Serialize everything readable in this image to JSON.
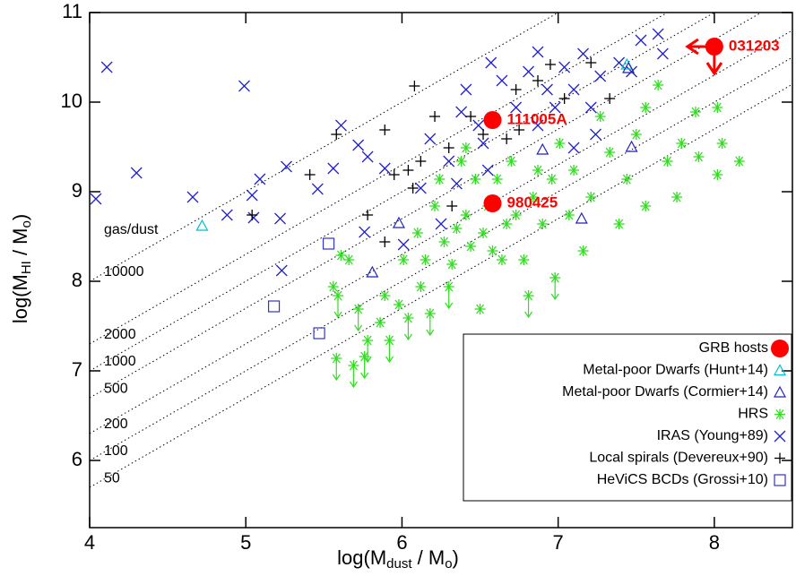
{
  "chart_data": {
    "type": "scatter",
    "xlabel": [
      "log(M",
      "dust",
      " / M",
      "o",
      ")"
    ],
    "ylabel": [
      "log(M",
      "HI",
      " / M",
      "o",
      ")"
    ],
    "xlim": [
      4,
      8.5
    ],
    "ylim": [
      5.25,
      11
    ],
    "xticks": [
      4,
      5,
      6,
      7,
      8
    ],
    "yticks": [
      6,
      7,
      8,
      9,
      10,
      11
    ],
    "legend": "lower right",
    "ratio_title": "gas/dust",
    "gas_dust_ratios": [
      10000,
      2000,
      1000,
      500,
      200,
      100,
      50
    ],
    "series": [
      {
        "name": "GRB hosts",
        "color": "#ff0000",
        "marker": "circle",
        "x": [
          8.0,
          6.58,
          6.58
        ],
        "values": [
          10.62,
          9.8,
          8.87
        ],
        "labels": [
          "031203",
          "111005A",
          "980425"
        ],
        "x_upper_limits": [
          0
        ],
        "y_upper_limits": [
          0
        ]
      },
      {
        "name": "Metal-poor Dwarfs (Hunt+14)",
        "color": "#00c0d0",
        "marker": "triangle",
        "x": [
          4.72,
          7.44
        ],
        "values": [
          8.62,
          10.42
        ]
      },
      {
        "name": "Metal-poor Dwarfs (Cormier+14)",
        "color": "#2222bb",
        "marker": "triangle",
        "x": [
          5.98,
          5.81,
          6.9,
          7.15,
          7.47,
          7.45
        ],
        "values": [
          8.65,
          8.1,
          9.47,
          8.7,
          9.5,
          10.38
        ]
      },
      {
        "name": "HRS",
        "color": "#33dd22",
        "marker": "asterisk",
        "x": [
          5.56,
          5.59,
          5.61,
          5.66,
          5.72,
          5.78,
          5.58,
          5.69,
          5.76,
          5.86,
          5.89,
          5.92,
          5.98,
          6.01,
          6.1,
          6.12,
          6.15,
          6.18,
          6.21,
          6.24,
          6.27,
          6.3,
          6.32,
          6.35,
          6.38,
          6.41,
          6.44,
          6.47,
          6.5,
          6.52,
          6.55,
          6.58,
          6.61,
          6.64,
          6.67,
          6.7,
          6.73,
          6.78,
          6.81,
          6.84,
          6.87,
          6.9,
          6.96,
          6.98,
          7.01,
          7.07,
          7.1,
          7.16,
          7.21,
          7.27,
          7.33,
          7.39,
          7.44,
          7.5,
          7.56,
          7.64,
          7.7,
          7.76,
          7.79,
          7.88,
          7.9,
          8.02,
          8.05,
          8.16,
          8.02,
          7.56,
          6.04,
          6.41
        ],
        "values": [
          7.94,
          7.84,
          8.29,
          8.24,
          7.69,
          7.34,
          7.14,
          7.06,
          7.16,
          7.54,
          7.84,
          7.34,
          7.74,
          8.24,
          8.54,
          7.94,
          8.24,
          7.64,
          8.84,
          9.14,
          8.44,
          7.94,
          8.19,
          8.59,
          9.34,
          8.74,
          8.39,
          9.14,
          7.69,
          8.54,
          8.84,
          8.34,
          9.14,
          8.24,
          8.64,
          9.34,
          8.74,
          8.24,
          7.84,
          8.94,
          9.24,
          8.64,
          9.14,
          8.04,
          9.54,
          8.74,
          9.24,
          8.34,
          8.94,
          9.84,
          9.44,
          8.64,
          9.14,
          9.64,
          9.94,
          10.19,
          9.34,
          8.94,
          9.54,
          9.89,
          9.39,
          9.94,
          9.54,
          9.34,
          9.19,
          8.84,
          7.59,
          9.49
        ],
        "y_upper_limits": [
          1,
          4,
          5,
          6,
          7,
          8,
          11,
          17,
          21,
          38,
          43,
          66
        ]
      },
      {
        "name": "IRAS (Young+89)",
        "color": "#2222cc",
        "marker": "x",
        "x": [
          4.04,
          4.11,
          4.3,
          4.66,
          4.88,
          5.04,
          4.99,
          5.05,
          5.26,
          5.09,
          5.22,
          5.23,
          5.46,
          5.61,
          5.72,
          5.56,
          5.78,
          5.76,
          5.89,
          6.01,
          6.12,
          6.18,
          6.25,
          6.3,
          6.41,
          6.38,
          6.49,
          6.52,
          6.57,
          6.64,
          6.73,
          6.81,
          6.87,
          6.93,
          6.98,
          7.04,
          7.1,
          7.16,
          7.21,
          7.27,
          7.39,
          7.47,
          7.53,
          7.64,
          7.67,
          7.24,
          7.1,
          6.35,
          6.55,
          6.87
        ],
        "values": [
          8.92,
          10.39,
          9.21,
          8.94,
          8.74,
          8.96,
          10.18,
          8.71,
          9.28,
          9.14,
          8.7,
          8.12,
          9.03,
          9.74,
          9.52,
          9.26,
          9.39,
          8.55,
          9.26,
          8.41,
          9.04,
          9.59,
          8.64,
          9.34,
          10.14,
          9.89,
          9.74,
          9.54,
          10.44,
          10.24,
          9.94,
          10.34,
          10.56,
          10.14,
          9.94,
          10.39,
          10.14,
          10.54,
          9.94,
          10.29,
          10.44,
          10.34,
          10.69,
          10.76,
          10.54,
          9.64,
          9.49,
          9.09,
          9.24,
          9.74
        ]
      },
      {
        "name": "Local spirals (Devereux+90)",
        "color": "#000000",
        "marker": "plus",
        "x": [
          5.04,
          5.41,
          5.58,
          5.78,
          5.89,
          5.95,
          6.08,
          6.04,
          6.07,
          6.21,
          6.3,
          6.32,
          6.44,
          6.52,
          6.67,
          6.75,
          6.87,
          6.95,
          7.04,
          7.21,
          7.33,
          6.12,
          5.89,
          6.73
        ],
        "values": [
          8.74,
          9.19,
          9.64,
          8.74,
          9.69,
          9.19,
          10.18,
          9.24,
          9.04,
          9.84,
          9.49,
          8.84,
          9.84,
          9.64,
          9.59,
          9.69,
          10.24,
          10.42,
          10.04,
          10.44,
          10.04,
          9.34,
          8.44,
          10.14
        ]
      },
      {
        "name": "HeViCS BCDs (Grossi+10)",
        "color": "#3333cc",
        "marker": "square",
        "x": [
          5.53,
          5.18,
          5.47
        ],
        "values": [
          8.42,
          7.72,
          7.42
        ]
      }
    ]
  }
}
